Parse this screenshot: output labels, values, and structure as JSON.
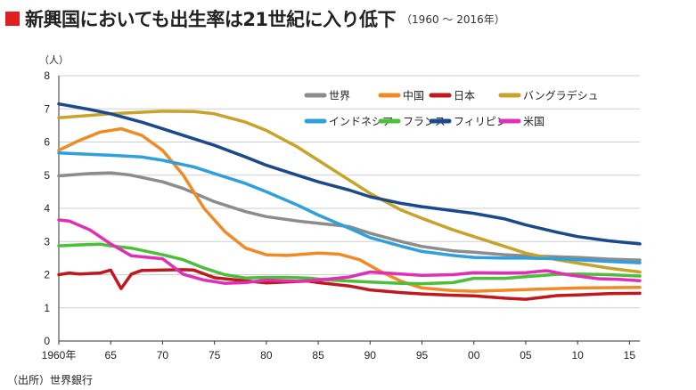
{
  "title": "新興国においても出生率は21世紀に入り低下",
  "subtitle": "（1960 ～ 2016年）",
  "source": "（出所）世界銀行",
  "chart_data": {
    "type": "line",
    "y_unit": "（人）",
    "ylim": [
      0,
      8
    ],
    "xlim": [
      1960,
      2016
    ],
    "y_ticks": [
      "0",
      "1",
      "2",
      "3",
      "4",
      "5",
      "6",
      "7",
      "8"
    ],
    "x_ticks": [
      {
        "value": 1960,
        "label": "1960年"
      },
      {
        "value": 1965,
        "label": "65"
      },
      {
        "value": 1970,
        "label": "70"
      },
      {
        "value": 1975,
        "label": "75"
      },
      {
        "value": 1980,
        "label": "80"
      },
      {
        "value": 1985,
        "label": "85"
      },
      {
        "value": 1990,
        "label": "90"
      },
      {
        "value": 1995,
        "label": "95"
      },
      {
        "value": 2000,
        "label": "00"
      },
      {
        "value": 2005,
        "label": "05"
      },
      {
        "value": 2010,
        "label": "10"
      },
      {
        "value": 2015,
        "label": "15"
      }
    ],
    "grid": true,
    "legend_position": "top-right",
    "series": [
      {
        "name": "世界",
        "color": "#8c8c8c",
        "points": [
          [
            1960,
            4.98
          ],
          [
            1963,
            5.05
          ],
          [
            1965,
            5.07
          ],
          [
            1967,
            5.0
          ],
          [
            1970,
            4.8
          ],
          [
            1972,
            4.6
          ],
          [
            1975,
            4.2
          ],
          [
            1978,
            3.9
          ],
          [
            1980,
            3.75
          ],
          [
            1983,
            3.62
          ],
          [
            1985,
            3.55
          ],
          [
            1988,
            3.45
          ],
          [
            1990,
            3.25
          ],
          [
            1993,
            3.0
          ],
          [
            1995,
            2.85
          ],
          [
            1998,
            2.72
          ],
          [
            2000,
            2.68
          ],
          [
            2003,
            2.6
          ],
          [
            2005,
            2.57
          ],
          [
            2008,
            2.54
          ],
          [
            2010,
            2.52
          ],
          [
            2013,
            2.47
          ],
          [
            2016,
            2.44
          ]
        ]
      },
      {
        "name": "中国",
        "color": "#f08a24",
        "points": [
          [
            1960,
            5.75
          ],
          [
            1962,
            6.05
          ],
          [
            1964,
            6.3
          ],
          [
            1966,
            6.4
          ],
          [
            1968,
            6.2
          ],
          [
            1970,
            5.75
          ],
          [
            1972,
            5.0
          ],
          [
            1974,
            4.0
          ],
          [
            1976,
            3.3
          ],
          [
            1978,
            2.8
          ],
          [
            1980,
            2.6
          ],
          [
            1982,
            2.58
          ],
          [
            1985,
            2.65
          ],
          [
            1987,
            2.62
          ],
          [
            1989,
            2.45
          ],
          [
            1991,
            2.1
          ],
          [
            1993,
            1.8
          ],
          [
            1995,
            1.6
          ],
          [
            1998,
            1.52
          ],
          [
            2000,
            1.5
          ],
          [
            2005,
            1.55
          ],
          [
            2010,
            1.6
          ],
          [
            2016,
            1.62
          ]
        ]
      },
      {
        "name": "日本",
        "color": "#c0181f",
        "points": [
          [
            1960,
            2.0
          ],
          [
            1961,
            2.05
          ],
          [
            1962,
            2.02
          ],
          [
            1964,
            2.05
          ],
          [
            1965,
            2.14
          ],
          [
            1966,
            1.58
          ],
          [
            1967,
            2.02
          ],
          [
            1968,
            2.13
          ],
          [
            1970,
            2.14
          ],
          [
            1972,
            2.15
          ],
          [
            1973,
            2.14
          ],
          [
            1975,
            1.91
          ],
          [
            1980,
            1.75
          ],
          [
            1984,
            1.81
          ],
          [
            1985,
            1.76
          ],
          [
            1988,
            1.66
          ],
          [
            1990,
            1.54
          ],
          [
            1993,
            1.46
          ],
          [
            1995,
            1.42
          ],
          [
            1998,
            1.38
          ],
          [
            2000,
            1.36
          ],
          [
            2003,
            1.29
          ],
          [
            2005,
            1.26
          ],
          [
            2008,
            1.37
          ],
          [
            2010,
            1.39
          ],
          [
            2013,
            1.43
          ],
          [
            2016,
            1.44
          ]
        ]
      },
      {
        "name": "バングラデシュ",
        "color": "#c9a22a",
        "points": [
          [
            1960,
            6.73
          ],
          [
            1965,
            6.85
          ],
          [
            1970,
            6.93
          ],
          [
            1973,
            6.92
          ],
          [
            1975,
            6.85
          ],
          [
            1978,
            6.6
          ],
          [
            1980,
            6.35
          ],
          [
            1983,
            5.85
          ],
          [
            1985,
            5.45
          ],
          [
            1988,
            4.85
          ],
          [
            1990,
            4.45
          ],
          [
            1993,
            3.95
          ],
          [
            1995,
            3.7
          ],
          [
            1998,
            3.35
          ],
          [
            2000,
            3.15
          ],
          [
            2003,
            2.85
          ],
          [
            2005,
            2.65
          ],
          [
            2008,
            2.45
          ],
          [
            2010,
            2.35
          ],
          [
            2013,
            2.2
          ],
          [
            2016,
            2.08
          ]
        ]
      },
      {
        "name": "インドネシア",
        "color": "#2ea0dd",
        "points": [
          [
            1960,
            5.67
          ],
          [
            1965,
            5.6
          ],
          [
            1968,
            5.55
          ],
          [
            1970,
            5.45
          ],
          [
            1973,
            5.25
          ],
          [
            1975,
            5.05
          ],
          [
            1978,
            4.75
          ],
          [
            1980,
            4.5
          ],
          [
            1983,
            4.1
          ],
          [
            1985,
            3.8
          ],
          [
            1988,
            3.4
          ],
          [
            1990,
            3.12
          ],
          [
            1993,
            2.86
          ],
          [
            1995,
            2.7
          ],
          [
            1998,
            2.58
          ],
          [
            2000,
            2.52
          ],
          [
            2003,
            2.5
          ],
          [
            2005,
            2.5
          ],
          [
            2008,
            2.48
          ],
          [
            2010,
            2.45
          ],
          [
            2013,
            2.4
          ],
          [
            2016,
            2.36
          ]
        ]
      },
      {
        "name": "フランス",
        "color": "#4cbf3a",
        "points": [
          [
            1960,
            2.87
          ],
          [
            1962,
            2.9
          ],
          [
            1964,
            2.92
          ],
          [
            1965,
            2.87
          ],
          [
            1967,
            2.8
          ],
          [
            1970,
            2.6
          ],
          [
            1972,
            2.45
          ],
          [
            1974,
            2.2
          ],
          [
            1976,
            2.0
          ],
          [
            1978,
            1.9
          ],
          [
            1980,
            1.92
          ],
          [
            1982,
            1.92
          ],
          [
            1984,
            1.9
          ],
          [
            1986,
            1.84
          ],
          [
            1988,
            1.81
          ],
          [
            1990,
            1.78
          ],
          [
            1993,
            1.74
          ],
          [
            1995,
            1.73
          ],
          [
            1998,
            1.76
          ],
          [
            2000,
            1.89
          ],
          [
            2003,
            1.89
          ],
          [
            2005,
            1.94
          ],
          [
            2008,
            2.01
          ],
          [
            2010,
            2.02
          ],
          [
            2013,
            2.0
          ],
          [
            2016,
            1.96
          ]
        ]
      },
      {
        "name": "フィリピン",
        "color": "#1a4a8c",
        "points": [
          [
            1960,
            7.15
          ],
          [
            1963,
            6.98
          ],
          [
            1965,
            6.85
          ],
          [
            1968,
            6.6
          ],
          [
            1970,
            6.4
          ],
          [
            1973,
            6.1
          ],
          [
            1975,
            5.9
          ],
          [
            1978,
            5.55
          ],
          [
            1980,
            5.3
          ],
          [
            1983,
            5.0
          ],
          [
            1985,
            4.8
          ],
          [
            1988,
            4.55
          ],
          [
            1990,
            4.35
          ],
          [
            1993,
            4.15
          ],
          [
            1995,
            4.05
          ],
          [
            1998,
            3.93
          ],
          [
            2000,
            3.85
          ],
          [
            2003,
            3.68
          ],
          [
            2005,
            3.5
          ],
          [
            2008,
            3.28
          ],
          [
            2010,
            3.15
          ],
          [
            2013,
            3.02
          ],
          [
            2016,
            2.93
          ]
        ]
      },
      {
        "name": "米国",
        "color": "#e02fb5",
        "points": [
          [
            1960,
            3.65
          ],
          [
            1961,
            3.62
          ],
          [
            1963,
            3.35
          ],
          [
            1965,
            2.93
          ],
          [
            1967,
            2.57
          ],
          [
            1970,
            2.48
          ],
          [
            1972,
            2.01
          ],
          [
            1974,
            1.84
          ],
          [
            1976,
            1.74
          ],
          [
            1978,
            1.76
          ],
          [
            1980,
            1.84
          ],
          [
            1983,
            1.8
          ],
          [
            1985,
            1.84
          ],
          [
            1988,
            1.93
          ],
          [
            1990,
            2.08
          ],
          [
            1993,
            2.02
          ],
          [
            1995,
            1.98
          ],
          [
            1998,
            2.0
          ],
          [
            2000,
            2.06
          ],
          [
            2003,
            2.05
          ],
          [
            2005,
            2.06
          ],
          [
            2007,
            2.12
          ],
          [
            2009,
            2.0
          ],
          [
            2012,
            1.88
          ],
          [
            2014,
            1.86
          ],
          [
            2016,
            1.82
          ]
        ]
      }
    ]
  }
}
